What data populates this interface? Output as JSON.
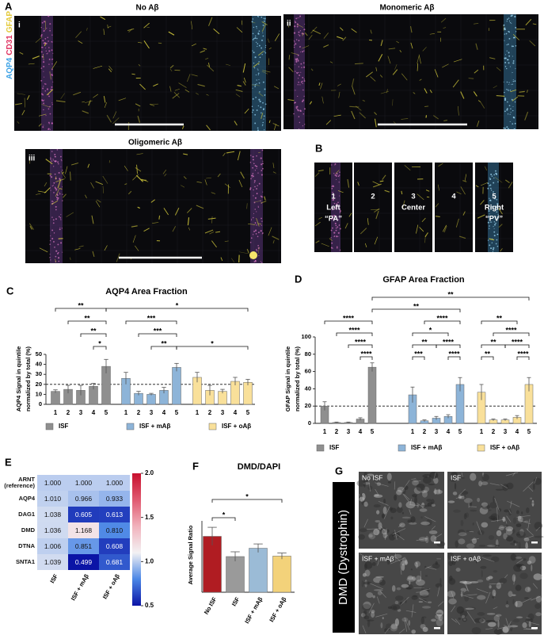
{
  "panel_labels": [
    "A",
    "B",
    "C",
    "D",
    "E",
    "F",
    "G"
  ],
  "panel_a": {
    "channels": [
      {
        "name": "AQP4",
        "color": "#3fa3e6"
      },
      {
        "name": "CD31",
        "color": "#e0305f"
      },
      {
        "name": "GFAP",
        "color": "#e3c93a"
      }
    ],
    "images": [
      {
        "numeral": "i",
        "title": "No Aβ"
      },
      {
        "numeral": "ii",
        "title": "Monomeric Aβ"
      },
      {
        "numeral": "iii",
        "title": "Oligomeric Aβ"
      }
    ]
  },
  "panel_b": {
    "regions": [
      [
        "1",
        "Left",
        "“PA”"
      ],
      [
        "2"
      ],
      [
        "3",
        "Center"
      ],
      [
        "4"
      ],
      [
        "5",
        "Right",
        "“PV”"
      ]
    ]
  },
  "panel_g": {
    "stain": "DMD (Dystrophin)",
    "images": [
      "No ISF",
      "ISF",
      "ISF + mAβ",
      "ISF + oAβ"
    ]
  },
  "chart_data": [
    {
      "type": "bar",
      "title": "AQP4 Area Fraction",
      "y_label": [
        "AQP4 Signal in quintile",
        "normalized by total (%)"
      ],
      "categories": [
        "1",
        "2",
        "3",
        "4",
        "5"
      ],
      "series": [
        {
          "name": "ISF",
          "color": "#8f8f8f",
          "values": [
            13,
            15,
            14,
            18,
            38
          ],
          "errors": [
            1.5,
            4,
            5,
            3,
            7
          ]
        },
        {
          "name": "ISF + mAβ",
          "color": "#8db4d8",
          "values": [
            26,
            11,
            10,
            14,
            37
          ],
          "errors": [
            6,
            2,
            1,
            3,
            4
          ]
        },
        {
          "name": "ISF + oAβ",
          "color": "#f9e09a",
          "values": [
            27,
            14,
            13,
            23,
            22
          ],
          "errors": [
            5,
            5,
            2,
            4,
            3
          ]
        }
      ],
      "ylim": [
        0,
        50
      ],
      "yticks": [
        0,
        10,
        20,
        30,
        40,
        50
      ],
      "reference_line": 20,
      "comparisons": [
        {
          "a": [
            0,
            3
          ],
          "b": [
            0,
            4
          ],
          "label": "*"
        },
        {
          "a": [
            0,
            2
          ],
          "b": [
            0,
            4
          ],
          "label": "**"
        },
        {
          "a": [
            0,
            1
          ],
          "b": [
            0,
            4
          ],
          "label": "**"
        },
        {
          "a": [
            0,
            0
          ],
          "b": [
            0,
            4
          ],
          "label": "**"
        },
        {
          "a": [
            1,
            2
          ],
          "b": [
            1,
            4
          ],
          "label": "**"
        },
        {
          "a": [
            1,
            1
          ],
          "b": [
            1,
            4
          ],
          "label": "***"
        },
        {
          "a": [
            1,
            0
          ],
          "b": [
            1,
            4
          ],
          "label": "***"
        },
        {
          "a": [
            1,
            4
          ],
          "b": [
            2,
            4
          ],
          "label": "*"
        },
        {
          "a": [
            0,
            4
          ],
          "b": [
            2,
            4
          ],
          "label": "*"
        }
      ]
    },
    {
      "type": "bar",
      "title": "GFAP Area Fraction",
      "y_label": [
        "GFAP Signal in quintile",
        "normalized by total (%)"
      ],
      "categories": [
        "1",
        "2",
        "3",
        "4",
        "5"
      ],
      "series": [
        {
          "name": "ISF",
          "color": "#8f8f8f",
          "values": [
            20,
            1,
            1,
            5,
            65
          ],
          "errors": [
            5,
            0.5,
            0.5,
            1.5,
            5
          ]
        },
        {
          "name": "ISF + mAβ",
          "color": "#8db4d8",
          "values": [
            33,
            3,
            6,
            8,
            45
          ],
          "errors": [
            9,
            1,
            2,
            2,
            8
          ]
        },
        {
          "name": "ISF + oAβ",
          "color": "#f9e09a",
          "values": [
            36,
            4,
            4,
            7,
            45
          ],
          "errors": [
            9,
            1,
            1,
            2,
            8
          ]
        }
      ],
      "ylim": [
        0,
        100
      ],
      "yticks": [
        0,
        20,
        40,
        60,
        80,
        100
      ],
      "reference_line": 20,
      "comparisons": [
        {
          "a": [
            0,
            3
          ],
          "b": [
            0,
            4
          ],
          "label": "****"
        },
        {
          "a": [
            0,
            2
          ],
          "b": [
            0,
            4
          ],
          "label": "****"
        },
        {
          "a": [
            0,
            1
          ],
          "b": [
            0,
            4
          ],
          "label": "****"
        },
        {
          "a": [
            0,
            0
          ],
          "b": [
            0,
            4
          ],
          "label": "****"
        },
        {
          "a": [
            1,
            0
          ],
          "b": [
            1,
            1
          ],
          "label": "***"
        },
        {
          "a": [
            1,
            3
          ],
          "b": [
            1,
            4
          ],
          "label": "****"
        },
        {
          "a": [
            1,
            0
          ],
          "b": [
            1,
            2
          ],
          "label": "**"
        },
        {
          "a": [
            1,
            2
          ],
          "b": [
            1,
            4
          ],
          "label": "****"
        },
        {
          "a": [
            1,
            0
          ],
          "b": [
            1,
            3
          ],
          "label": "*"
        },
        {
          "a": [
            1,
            1
          ],
          "b": [
            1,
            4
          ],
          "label": "****"
        },
        {
          "a": [
            2,
            0
          ],
          "b": [
            2,
            1
          ],
          "label": "**"
        },
        {
          "a": [
            2,
            3
          ],
          "b": [
            2,
            4
          ],
          "label": "****"
        },
        {
          "a": [
            2,
            0
          ],
          "b": [
            2,
            2
          ],
          "label": "**"
        },
        {
          "a": [
            2,
            2
          ],
          "b": [
            2,
            4
          ],
          "label": "****"
        },
        {
          "a": [
            2,
            1
          ],
          "b": [
            2,
            4
          ],
          "label": "****"
        },
        {
          "a": [
            2,
            0
          ],
          "b": [
            2,
            3
          ],
          "label": "**"
        },
        {
          "a": [
            0,
            4
          ],
          "b": [
            1,
            4
          ],
          "label": "**"
        },
        {
          "a": [
            0,
            4
          ],
          "b": [
            2,
            4
          ],
          "label": "**"
        }
      ]
    },
    {
      "type": "heatmap",
      "rows": [
        "ARNT (reference)",
        "AQP4",
        "DAG1",
        "DMD",
        "DTNA",
        "SNTA1"
      ],
      "columns": [
        "ISF",
        "ISF + mAβ",
        "ISF + oAβ"
      ],
      "values": [
        [
          1,
          1,
          1
        ],
        [
          1.01,
          0.966,
          0.933
        ],
        [
          1.038,
          0.605,
          0.613
        ],
        [
          1.036,
          1.168,
          0.81
        ],
        [
          1.006,
          0.851,
          0.608
        ],
        [
          1.039,
          0.499,
          0.681
        ]
      ],
      "value_labels": [
        [
          "1.000",
          "1.000",
          "1.000"
        ],
        [
          "1.010",
          "0.966",
          "0.933"
        ],
        [
          "1.038",
          "0.605",
          "0.613"
        ],
        [
          "1.036",
          "1.168",
          "0.810"
        ],
        [
          "1.006",
          "0.851",
          "0.608"
        ],
        [
          "1.039",
          "0.499",
          "0.681"
        ]
      ],
      "colormap": [
        "#0b14a6",
        "#4a86e6",
        "#f3f1f3",
        "#f1b2bc",
        "#e05a70",
        "#c8102e"
      ],
      "clim": [
        0.5,
        2
      ],
      "cticks": [
        0.5,
        {
          "value": 1,
          "label": "1.0"
        },
        1.5,
        {
          "value": 2,
          "label": "2.0"
        }
      ]
    },
    {
      "type": "bar",
      "title": "DMD/DAPI",
      "y_label": "Average Signal Ratio",
      "categories": [
        "No ISF",
        "ISF",
        "ISF + mAβ",
        "ISF + oAβ"
      ],
      "values": [
        2.35,
        1.5,
        1.85,
        1.52
      ],
      "errors": [
        0.38,
        0.2,
        0.18,
        0.13
      ],
      "colors": [
        "#b01c22",
        "#9a9a9a",
        "#9bbbd6",
        "#f3d27a"
      ],
      "ylim": [
        0,
        3
      ],
      "comparisons": [
        {
          "a": 0,
          "b": 1,
          "label": "*"
        },
        {
          "a": 0,
          "b": 3,
          "label": "*"
        }
      ]
    }
  ]
}
